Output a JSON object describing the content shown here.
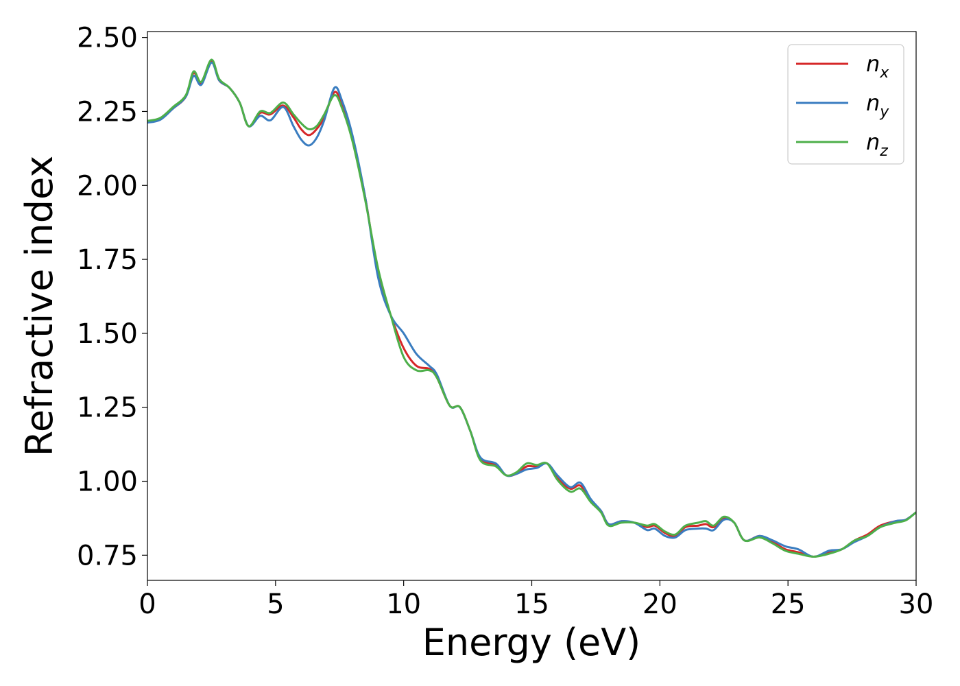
{
  "chart_data": {
    "type": "line",
    "title": "",
    "xlabel": "Energy (eV)",
    "ylabel": "Refractive index",
    "xlim": [
      0,
      30
    ],
    "ylim": [
      0.665,
      2.52
    ],
    "xticks": [
      0,
      5,
      10,
      15,
      20,
      25,
      30
    ],
    "yticks": [
      0.75,
      1.0,
      1.25,
      1.5,
      1.75,
      2.0,
      2.25,
      2.5
    ],
    "xtick_labels": [
      "0",
      "5",
      "10",
      "15",
      "20",
      "25",
      "30"
    ],
    "ytick_labels": [
      "0.75",
      "1.00",
      "1.25",
      "1.50",
      "1.75",
      "2.00",
      "2.25",
      "2.50"
    ],
    "grid": false,
    "legend_position": "top-right",
    "series": [
      {
        "name": "n_x",
        "label_base": "n",
        "label_sub": "x",
        "color": "#d62728",
        "x": [
          0,
          0.5,
          1.0,
          1.5,
          1.8,
          2.1,
          2.5,
          2.8,
          3.2,
          3.6,
          3.95,
          4.4,
          4.8,
          5.3,
          5.7,
          6.0,
          6.3,
          6.6,
          6.9,
          7.3,
          7.6,
          8.0,
          8.5,
          9.0,
          9.5,
          10.0,
          10.5,
          11.0,
          11.3,
          11.8,
          12.2,
          12.6,
          13.0,
          13.6,
          14.0,
          14.4,
          14.8,
          15.2,
          15.6,
          16.0,
          16.5,
          16.9,
          17.3,
          17.7,
          18.0,
          18.5,
          19.0,
          19.5,
          19.8,
          20.2,
          20.6,
          21.0,
          21.5,
          21.8,
          22.1,
          22.5,
          22.9,
          23.3,
          23.9,
          24.4,
          24.9,
          25.4,
          26.0,
          26.6,
          27.1,
          27.6,
          28.1,
          28.6,
          29.2,
          29.6,
          30.0
        ],
        "y": [
          2.215,
          2.225,
          2.26,
          2.3,
          2.38,
          2.345,
          2.42,
          2.355,
          2.33,
          2.28,
          2.2,
          2.245,
          2.24,
          2.27,
          2.23,
          2.19,
          2.17,
          2.19,
          2.23,
          2.315,
          2.27,
          2.16,
          1.96,
          1.7,
          1.56,
          1.45,
          1.39,
          1.38,
          1.35,
          1.255,
          1.25,
          1.17,
          1.075,
          1.055,
          1.02,
          1.025,
          1.05,
          1.05,
          1.06,
          1.01,
          0.975,
          0.985,
          0.935,
          0.9,
          0.855,
          0.865,
          0.86,
          0.845,
          0.85,
          0.825,
          0.815,
          0.845,
          0.85,
          0.855,
          0.845,
          0.875,
          0.86,
          0.8,
          0.815,
          0.795,
          0.77,
          0.76,
          0.745,
          0.76,
          0.77,
          0.8,
          0.82,
          0.85,
          0.865,
          0.87,
          0.895
        ]
      },
      {
        "name": "n_y",
        "label_base": "n",
        "label_sub": "y",
        "color": "#3a7dc0",
        "x": [
          0,
          0.5,
          1.0,
          1.5,
          1.8,
          2.1,
          2.5,
          2.8,
          3.2,
          3.6,
          3.95,
          4.4,
          4.8,
          5.3,
          5.7,
          6.0,
          6.3,
          6.6,
          6.9,
          7.3,
          7.6,
          8.0,
          8.5,
          9.0,
          9.5,
          10.0,
          10.5,
          11.0,
          11.3,
          11.8,
          12.2,
          12.6,
          13.0,
          13.6,
          14.0,
          14.4,
          14.8,
          15.2,
          15.6,
          16.0,
          16.5,
          16.9,
          17.3,
          17.7,
          18.0,
          18.5,
          19.0,
          19.5,
          19.8,
          20.2,
          20.6,
          21.0,
          21.5,
          21.8,
          22.1,
          22.5,
          22.9,
          23.3,
          23.9,
          24.4,
          24.9,
          25.4,
          26.0,
          26.6,
          27.1,
          27.6,
          28.1,
          28.6,
          29.2,
          29.6,
          30.0
        ],
        "y": [
          2.212,
          2.222,
          2.26,
          2.3,
          2.37,
          2.34,
          2.415,
          2.355,
          2.33,
          2.28,
          2.2,
          2.235,
          2.22,
          2.265,
          2.2,
          2.155,
          2.135,
          2.16,
          2.22,
          2.33,
          2.285,
          2.17,
          1.96,
          1.69,
          1.56,
          1.5,
          1.43,
          1.39,
          1.36,
          1.255,
          1.25,
          1.17,
          1.08,
          1.06,
          1.02,
          1.025,
          1.04,
          1.045,
          1.06,
          1.02,
          0.98,
          0.995,
          0.94,
          0.9,
          0.855,
          0.865,
          0.86,
          0.835,
          0.84,
          0.815,
          0.81,
          0.835,
          0.84,
          0.84,
          0.835,
          0.87,
          0.86,
          0.8,
          0.815,
          0.8,
          0.78,
          0.77,
          0.745,
          0.765,
          0.77,
          0.795,
          0.815,
          0.845,
          0.865,
          0.87,
          0.895
        ]
      },
      {
        "name": "n_z",
        "label_base": "n",
        "label_sub": "z",
        "color": "#4daf4a",
        "x": [
          0,
          0.5,
          1.0,
          1.5,
          1.8,
          2.1,
          2.5,
          2.8,
          3.2,
          3.6,
          3.95,
          4.4,
          4.8,
          5.3,
          5.7,
          6.0,
          6.3,
          6.6,
          6.9,
          7.3,
          7.6,
          8.0,
          8.5,
          9.0,
          9.5,
          10.0,
          10.5,
          11.0,
          11.3,
          11.8,
          12.2,
          12.6,
          13.0,
          13.6,
          14.0,
          14.4,
          14.8,
          15.2,
          15.6,
          16.0,
          16.5,
          16.9,
          17.3,
          17.7,
          18.0,
          18.5,
          19.0,
          19.5,
          19.8,
          20.2,
          20.6,
          21.0,
          21.5,
          21.8,
          22.1,
          22.5,
          22.9,
          23.3,
          23.9,
          24.4,
          24.9,
          25.4,
          26.0,
          26.6,
          27.1,
          27.6,
          28.1,
          28.6,
          29.2,
          29.6,
          30.0
        ],
        "y": [
          2.218,
          2.228,
          2.265,
          2.305,
          2.385,
          2.35,
          2.425,
          2.36,
          2.33,
          2.28,
          2.2,
          2.25,
          2.245,
          2.28,
          2.24,
          2.21,
          2.19,
          2.2,
          2.24,
          2.305,
          2.26,
          2.15,
          1.95,
          1.72,
          1.56,
          1.42,
          1.375,
          1.375,
          1.35,
          1.255,
          1.25,
          1.17,
          1.07,
          1.05,
          1.02,
          1.03,
          1.06,
          1.055,
          1.06,
          1.005,
          0.965,
          0.975,
          0.93,
          0.895,
          0.85,
          0.86,
          0.86,
          0.85,
          0.855,
          0.83,
          0.82,
          0.85,
          0.86,
          0.865,
          0.85,
          0.88,
          0.86,
          0.8,
          0.81,
          0.79,
          0.765,
          0.755,
          0.745,
          0.755,
          0.77,
          0.8,
          0.815,
          0.845,
          0.86,
          0.868,
          0.895
        ]
      }
    ]
  }
}
